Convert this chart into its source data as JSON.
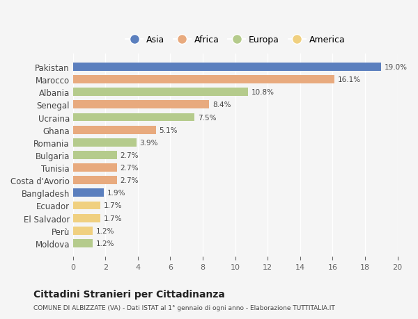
{
  "countries": [
    "Pakistan",
    "Marocco",
    "Albania",
    "Senegal",
    "Ucraina",
    "Ghana",
    "Romania",
    "Bulgaria",
    "Tunisia",
    "Costa d'Avorio",
    "Bangladesh",
    "Ecuador",
    "El Salvador",
    "Perù",
    "Moldova"
  ],
  "values": [
    19.0,
    16.1,
    10.8,
    8.4,
    7.5,
    5.1,
    3.9,
    2.7,
    2.7,
    2.7,
    1.9,
    1.7,
    1.7,
    1.2,
    1.2
  ],
  "continents": [
    "Asia",
    "Africa",
    "Europa",
    "Africa",
    "Europa",
    "Africa",
    "Europa",
    "Europa",
    "Africa",
    "Africa",
    "Asia",
    "America",
    "America",
    "America",
    "Europa"
  ],
  "colors": {
    "Asia": "#5b7fbe",
    "Africa": "#e8aa7e",
    "Europa": "#b5cb8c",
    "America": "#f0d080"
  },
  "legend_order": [
    "Asia",
    "Africa",
    "Europa",
    "America"
  ],
  "title": "Cittadini Stranieri per Cittadinanza",
  "subtitle": "COMUNE DI ALBIZZATE (VA) - Dati ISTAT al 1° gennaio di ogni anno - Elaborazione TUTTITALIA.IT",
  "xlim": [
    0,
    20
  ],
  "xticks": [
    0,
    2,
    4,
    6,
    8,
    10,
    12,
    14,
    16,
    18,
    20
  ],
  "bg_color": "#f5f5f5",
  "bar_height": 0.65
}
